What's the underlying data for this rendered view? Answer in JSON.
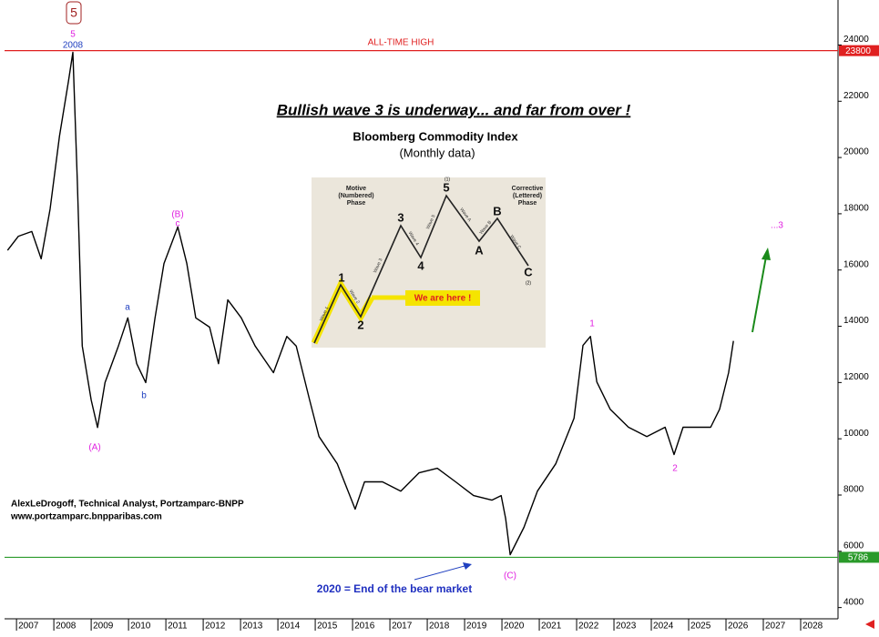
{
  "chart_data": {
    "type": "line",
    "title": "Bullish wave 3 is underway... and far from over !",
    "subtitle": [
      "Bloomberg Commodity Index",
      "(Monthly data)"
    ],
    "x": [
      2006.76,
      2007.05,
      2007.41,
      2007.66,
      2007.9,
      2008.15,
      2008.39,
      2008.51,
      2008.63,
      2008.76,
      2009.0,
      2009.17,
      2009.37,
      2009.73,
      2009.98,
      2010.22,
      2010.46,
      2010.71,
      2010.95,
      2011.32,
      2011.56,
      2011.8,
      2012.17,
      2012.41,
      2012.66,
      2013.02,
      2013.39,
      2013.88,
      2014.24,
      2014.49,
      2014.85,
      2015.1,
      2015.59,
      2016.07,
      2016.32,
      2016.8,
      2017.29,
      2017.78,
      2018.27,
      2018.76,
      2019.24,
      2019.73,
      2019.98,
      2020.1,
      2020.22,
      2020.59,
      2020.95,
      2021.44,
      2021.93,
      2022.17,
      2022.37,
      2022.54,
      2022.9,
      2023.39,
      2023.88,
      2024.37,
      2024.61,
      2024.85,
      2025.22,
      2025.59,
      2025.83,
      2026.07,
      2026.2
    ],
    "values": [
      16700,
      17200,
      17370,
      16400,
      18170,
      20760,
      22700,
      23740,
      19150,
      13300,
      11380,
      10400,
      12000,
      13300,
      14300,
      12670,
      12000,
      14300,
      16230,
      17530,
      16230,
      14300,
      13970,
      12670,
      14940,
      14300,
      13300,
      12350,
      13640,
      13300,
      11380,
      10080,
      9110,
      7500,
      8470,
      8470,
      8140,
      8790,
      8950,
      8470,
      7980,
      7820,
      7980,
      7170,
      5880,
      6850,
      8140,
      9110,
      10730,
      13320,
      13640,
      12020,
      11050,
      10410,
      10080,
      10410,
      9440,
      10410,
      10410,
      10410,
      11050,
      12350,
      13480
    ],
    "color": "#000000",
    "xlim": [
      2006.68,
      2029
    ],
    "xticks": [
      2007,
      2008,
      2009,
      2010,
      2011,
      2012,
      2013,
      2014,
      2015,
      2016,
      2017,
      2018,
      2019,
      2020,
      2021,
      2022,
      2023,
      2024,
      2025,
      2026,
      2027,
      2028
    ],
    "ylim": [
      3600,
      25600
    ],
    "yticks": [
      4000,
      6000,
      8000,
      10000,
      12000,
      14000,
      16000,
      18000,
      20000,
      22000,
      24000
    ],
    "reference_lines": [
      {
        "value": 23800,
        "color": "#e02020"
      },
      {
        "value": 5786,
        "color": "#2a9a2a"
      }
    ],
    "annotations": {
      "top_wave": "5",
      "peak_wave": "5",
      "peak_year": "2008",
      "ath": "ALL-TIME HIGH",
      "wave_B": "(B)",
      "wave_c": "c",
      "wave_a": "a",
      "wave_b": "b",
      "wave_A": "(A)",
      "wave_C": "(C)",
      "wave_1": "1",
      "wave_2": "2",
      "wave_3": "...3",
      "author": "AlexLeDrogoff, Technical Analyst, Portzamparc-BNPP",
      "website": "www.portzamparc.bnpparibas.com",
      "bear_end": "2020 = End of the bear market"
    }
  },
  "inset": {
    "motive": [
      "Motive",
      "(Numbered)",
      "Phase"
    ],
    "corrective": [
      "Corrective",
      "(Lettered)",
      "Phase"
    ],
    "points": [
      "1",
      "2",
      "3",
      "4",
      "5",
      "A",
      "B",
      "C"
    ],
    "waves": [
      "Wave 1",
      "Wave 2",
      "Wave 3",
      "Wave 4",
      "Wave 5",
      "Wave A",
      "Wave B",
      "Wave C"
    ],
    "sub_top": "(1)",
    "sub_bottom": "(2)",
    "here": "We are here !"
  }
}
